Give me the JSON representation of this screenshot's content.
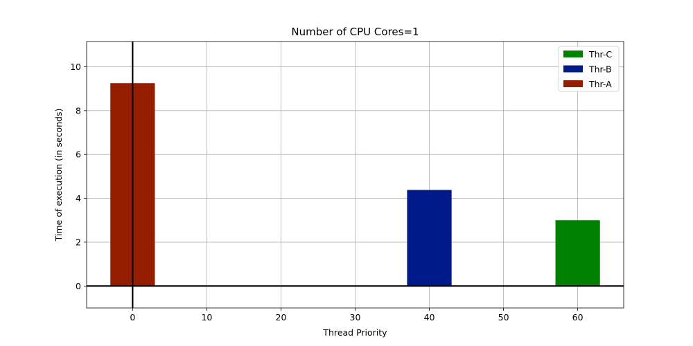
{
  "chart_data": {
    "type": "bar",
    "title": "Number of CPU Cores=1",
    "xlabel": "Thread Priority",
    "ylabel": "Time of execution (in seconds)",
    "xlim": [
      -6.2,
      66.2
    ],
    "ylim": [
      -1.0,
      11.15
    ],
    "x_ticks": [
      0,
      10,
      20,
      30,
      40,
      50,
      60
    ],
    "y_ticks": [
      0,
      2,
      4,
      6,
      8,
      10
    ],
    "grid": true,
    "legend_position": "top-right",
    "bar_width": 6,
    "series": [
      {
        "name": "Thr-C",
        "x": [
          60
        ],
        "values": [
          3.0
        ],
        "color": "#007f00"
      },
      {
        "name": "Thr-B",
        "x": [
          40
        ],
        "values": [
          4.38
        ],
        "color": "#001a8a"
      },
      {
        "name": "Thr-A",
        "x": [
          0
        ],
        "values": [
          9.25
        ],
        "color": "#951e00"
      }
    ]
  }
}
